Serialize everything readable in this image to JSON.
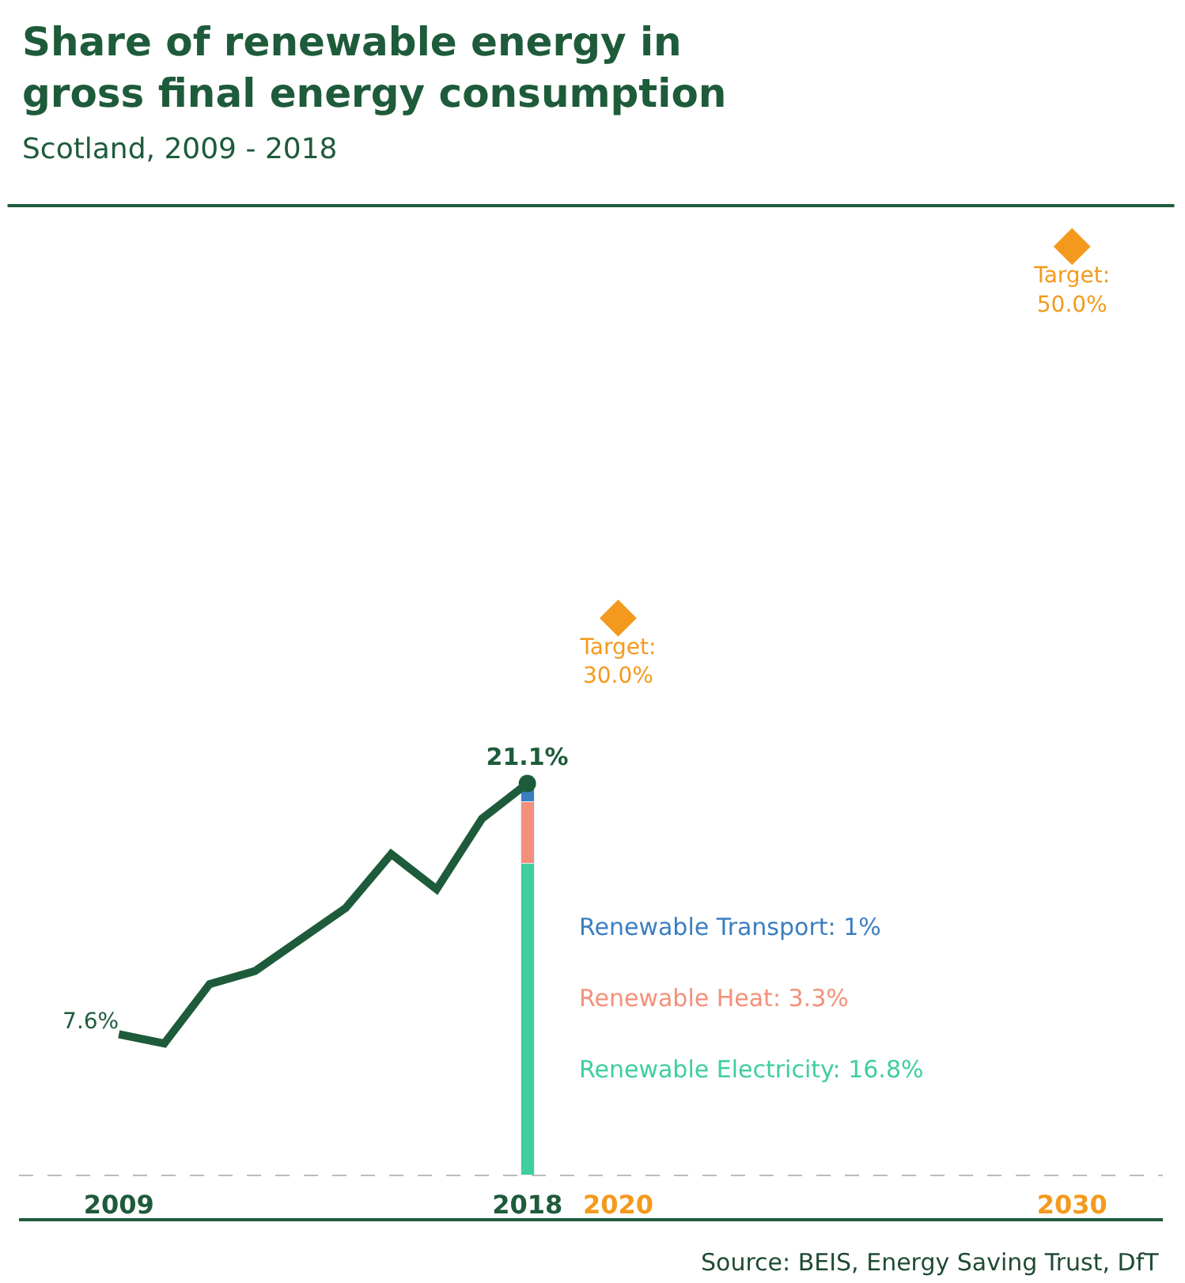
{
  "chart_data": {
    "type": "line",
    "title": "Share of renewable energy in\ngross final energy consumption",
    "subtitle": "Scotland, 2009 - 2018",
    "xlim": [
      2006.8,
      2032
    ],
    "xticks": [
      2009,
      2018,
      2020,
      2030
    ],
    "ylim": [
      -2.3,
      52.2
    ],
    "tick_labels": "x",
    "series": [
      {
        "color": "#1e5b3a",
        "line_style": "solid",
        "x": [
          2009,
          2010,
          2011,
          2012,
          2013,
          2014,
          2015,
          2016,
          2017,
          2018
        ],
        "values": [
          7.6,
          7.1,
          10.3,
          11.0,
          12.7,
          14.4,
          17.3,
          15.4,
          19.2,
          21.1
        ],
        "value_labels": [
          "7.6%",
          null,
          null,
          null,
          null,
          null,
          null,
          null,
          null,
          null
        ]
      },
      {
        "type": "bar",
        "name": "Renewable Electricity: 16.8%",
        "color": "#3ecf9a",
        "x": [
          2018
        ],
        "values": [
          16.8
        ]
      },
      {
        "type": "bar",
        "name": "Renewable Heat: 3.3%",
        "color": "#f4907a",
        "x": [
          2018
        ],
        "values": [
          3.3
        ]
      },
      {
        "type": "bar",
        "name": "Renewable Transport: 1%",
        "color": "#3a7ec0",
        "x": [
          2018
        ],
        "values": [
          1
        ]
      },
      {
        "type": "scatter",
        "color": "#1e5b3a",
        "marker": "circle",
        "x": [
          2018
        ],
        "values": [
          21.1
        ],
        "value_labels": [
          "21.1%"
        ]
      },
      {
        "type": "scatter",
        "color": "#f39a1e",
        "marker": "diamond",
        "x": [
          2020,
          2030
        ],
        "values": [
          30,
          50
        ],
        "value_labels": [
          "Target:\n30.0%",
          "Target:\n50.0%"
        ]
      }
    ],
    "stacked": true,
    "ref_lines": [
      {
        "axis": "y",
        "value": 0,
        "color": "#bbbbbb",
        "line_style": "dashed"
      }
    ],
    "annotations": [
      "Source: BEIS, Energy Saving Trust, DfT"
    ]
  }
}
